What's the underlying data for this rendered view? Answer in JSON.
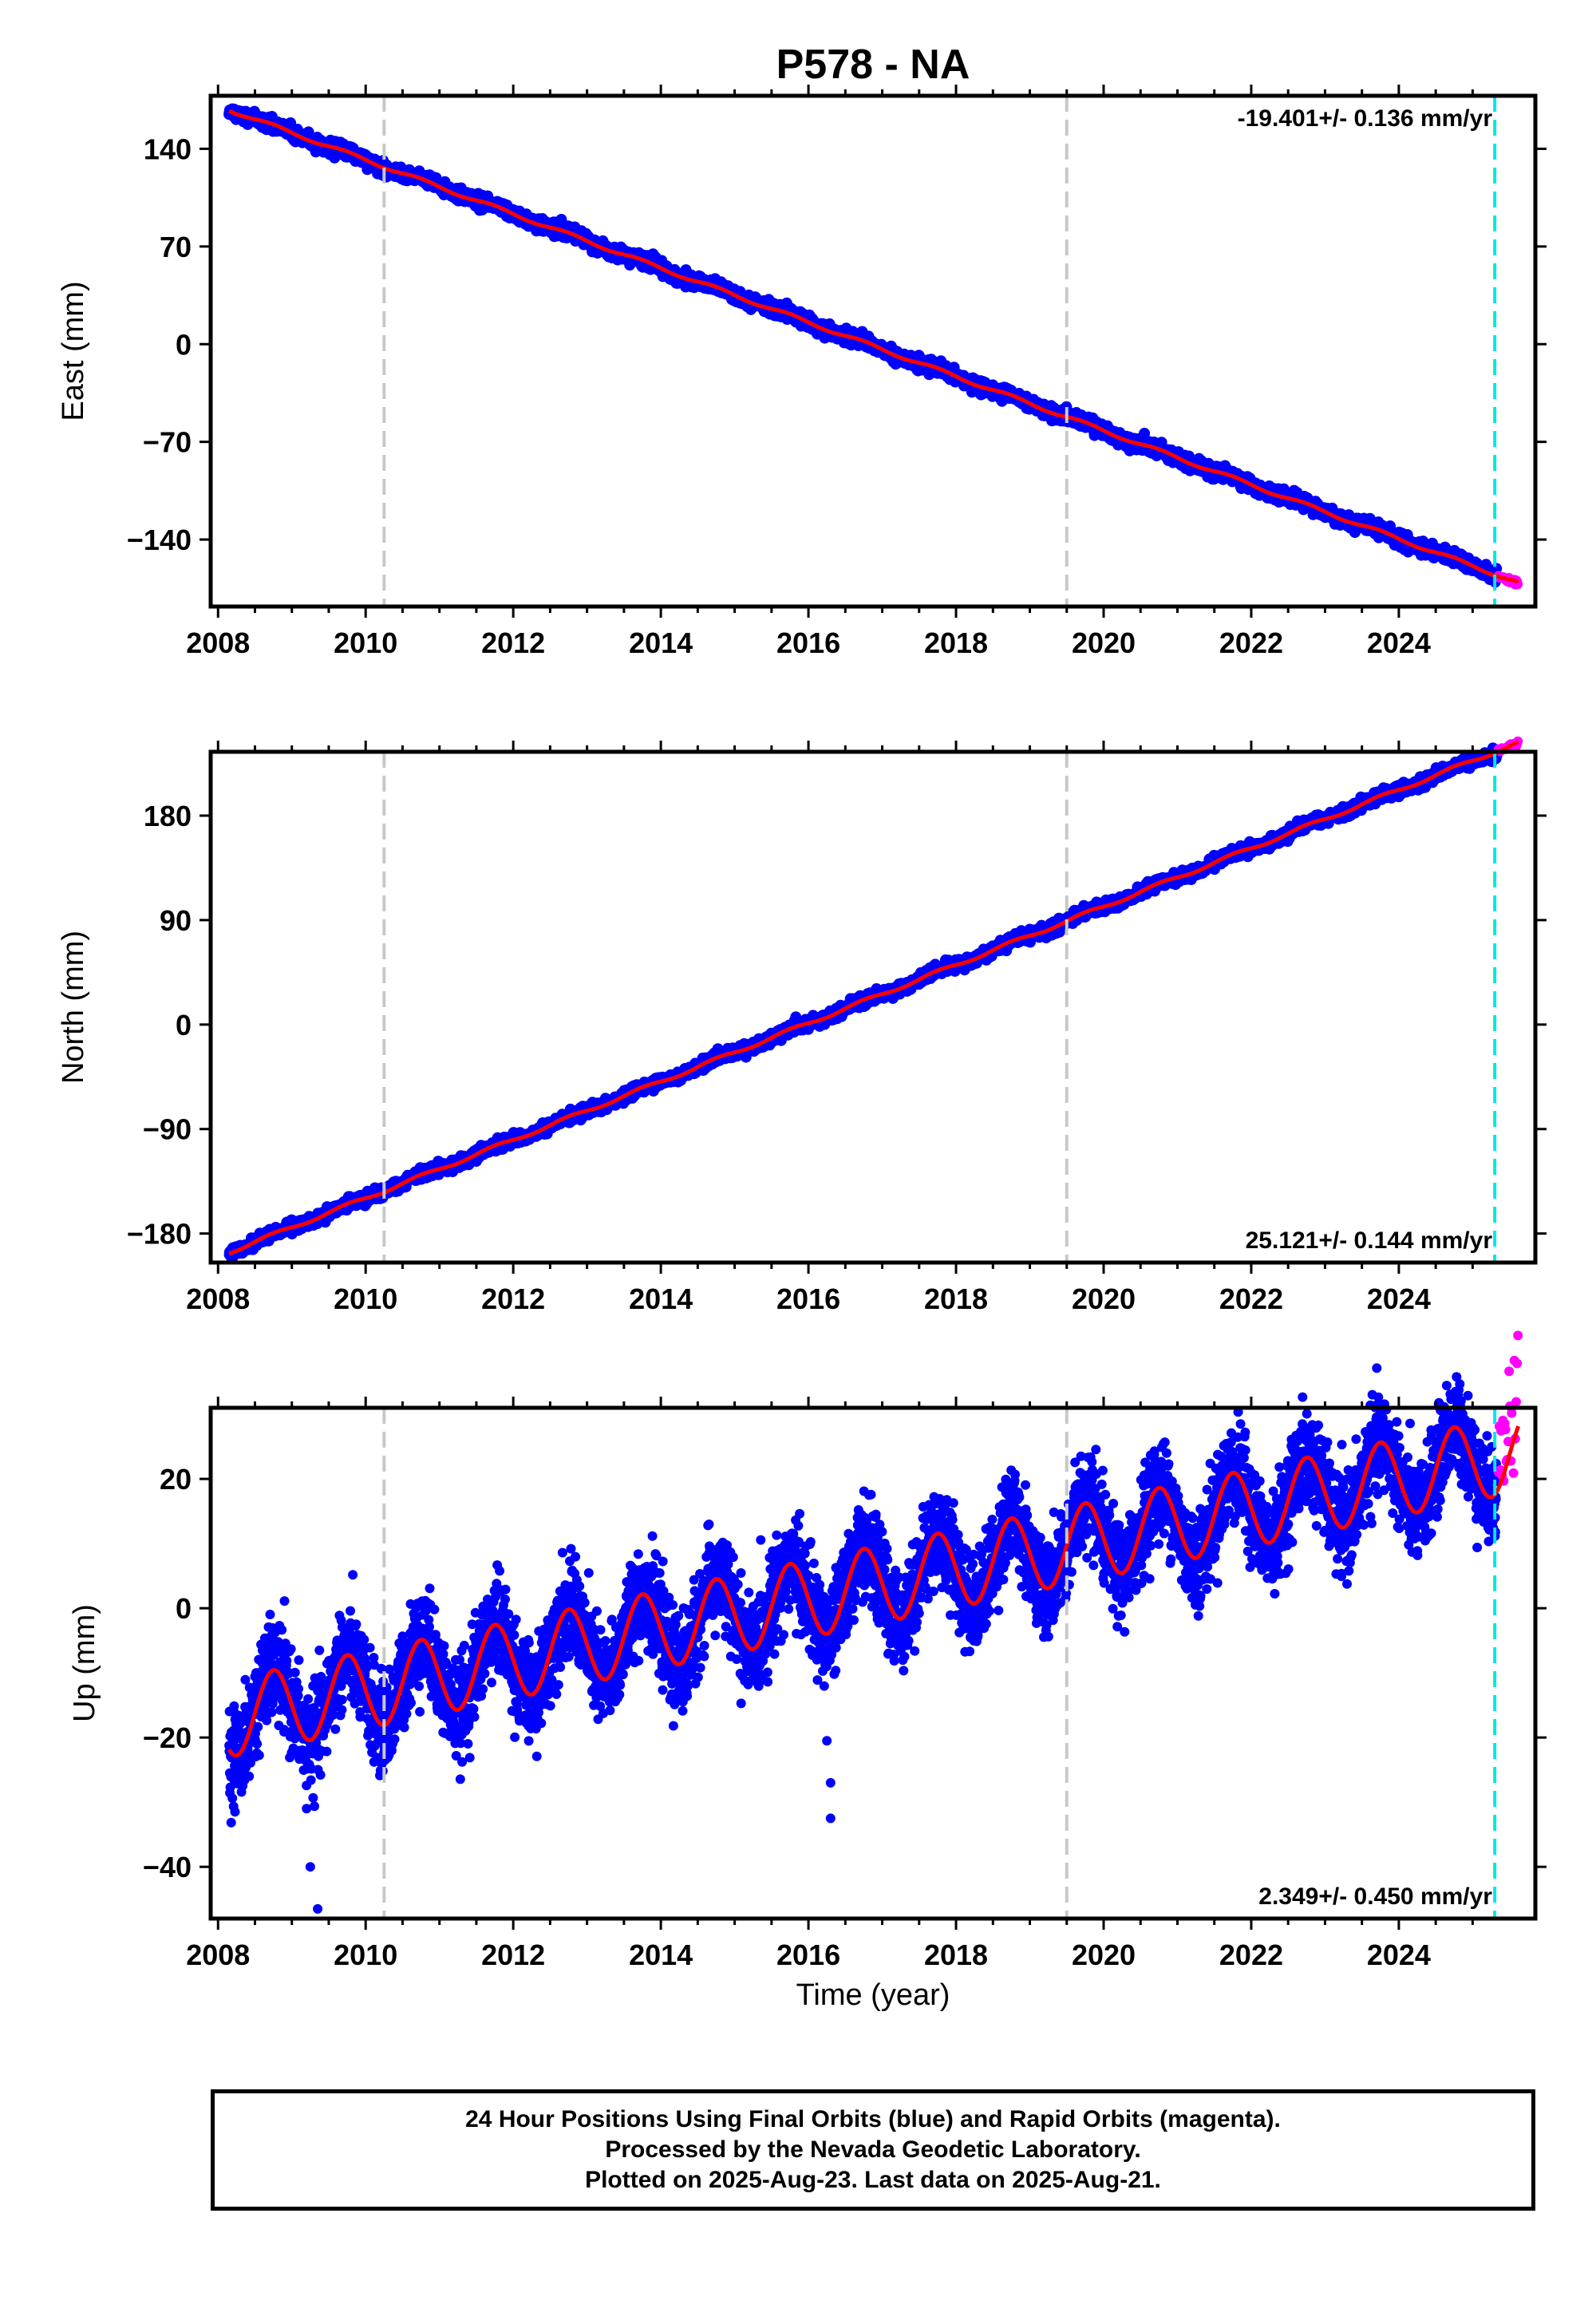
{
  "chart_data": {
    "title": "P578 - NA",
    "xlabel": "Time (year)",
    "xlim": [
      2007.9,
      2025.85
    ],
    "x_ticks": [
      "2008",
      "2010",
      "2012",
      "2014",
      "2016",
      "2018",
      "2020",
      "2022",
      "2024"
    ],
    "event_lines": {
      "gray_dashed": [
        2010.25,
        2019.5
      ],
      "cyan_dashed": [
        2025.3
      ]
    },
    "panels": [
      {
        "type": "scatter",
        "ylabel": "East (mm)",
        "ylim": [
          -188,
          178
        ],
        "y_ticks": [
          "140",
          "70",
          "0",
          "−70",
          "−140"
        ],
        "rate_label": "-19.401+/- 0.136 mm/yr",
        "rate_position": "top-right",
        "series": [
          {
            "name": "Final Orbits",
            "color": "#0000ff",
            "start": [
              2008.15,
              168
            ],
            "slope": -19.401,
            "noise": 2.2,
            "annual_amp": 1.2
          },
          {
            "name": "Rapid Orbits",
            "color": "#ff00ff",
            "x_range": [
              2025.35,
              2025.62
            ]
          },
          {
            "name": "Model fit",
            "color": "#ff0000"
          }
        ]
      },
      {
        "type": "scatter",
        "ylabel": "North (mm)",
        "ylim": [
          -205,
          235
        ],
        "y_ticks": [
          "180",
          "90",
          "0",
          "−90",
          "−180"
        ],
        "rate_label": "25.121+/- 0.144 mm/yr",
        "rate_position": "bottom-right",
        "series": [
          {
            "name": "Final Orbits",
            "color": "#0000ff",
            "start": [
              2008.15,
              -196
            ],
            "slope": 25.121,
            "noise": 2.2,
            "annual_amp": 1.5
          },
          {
            "name": "Rapid Orbits",
            "color": "#ff00ff",
            "x_range": [
              2025.35,
              2025.62
            ]
          },
          {
            "name": "Model fit",
            "color": "#ff0000"
          }
        ]
      },
      {
        "type": "scatter",
        "ylabel": "Up (mm)",
        "ylim": [
          -48,
          31
        ],
        "y_ticks": [
          "20",
          "0",
          "−20",
          "−40"
        ],
        "rate_label": "2.349+/- 0.450 mm/yr",
        "rate_position": "bottom-right",
        "series": [
          {
            "name": "Final Orbits",
            "color": "#0000ff",
            "start": [
              2008.15,
              -17
            ],
            "slope": 2.349,
            "noise": 3.6,
            "annual_amp": 6.0
          },
          {
            "name": "Rapid Orbits",
            "color": "#ff00ff",
            "x_range": [
              2025.35,
              2025.62
            ]
          },
          {
            "name": "Model fit",
            "color": "#ff0000"
          }
        ],
        "outliers": [
          [
            2009.25,
            -40
          ],
          [
            2009.35,
            -46.5
          ],
          [
            2016.25,
            -20.5
          ],
          [
            2016.3,
            -27
          ],
          [
            2016.3,
            -32.5
          ],
          [
            2009.2,
            -31
          ]
        ]
      }
    ]
  },
  "footer": {
    "line1": "24 Hour Positions Using Final Orbits (blue) and Rapid Orbits (magenta).",
    "line2": "Processed by the Nevada Geodetic Laboratory.",
    "line3": "Plotted on 2025-Aug-23. Last data on 2025-Aug-21."
  }
}
